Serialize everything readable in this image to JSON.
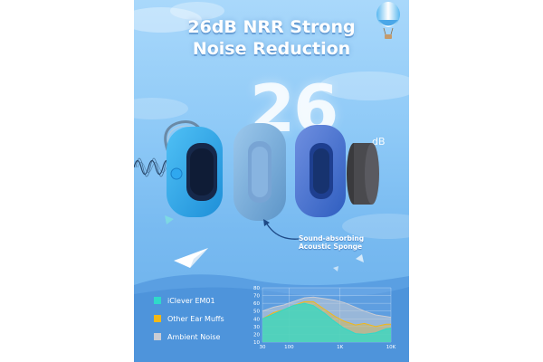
{
  "headline": {
    "line1": "26dB NRR Strong",
    "line2": "Noise Reduction"
  },
  "big_value": {
    "number": "26",
    "unit": "dB"
  },
  "callout": {
    "line1": "Sound-absorbing",
    "line2": "Acoustic Sponge"
  },
  "legend": [
    {
      "label": "iClever EM01",
      "color": "#2fd9c9"
    },
    {
      "label": "Other Ear Muffs",
      "color": "#f2b817"
    },
    {
      "label": "Ambient Noise",
      "color": "#c9ccd4"
    }
  ],
  "icons": [
    "hot-air-balloon-icon",
    "paper-airplane-icon",
    "sound-wave-icon",
    "curved-arrow-icon"
  ],
  "chart_data": {
    "type": "area",
    "xscale": "log",
    "xlim": [
      30,
      10000
    ],
    "x_ticks": [
      {
        "value": 30,
        "label": "30"
      },
      {
        "value": 100,
        "label": "100"
      },
      {
        "value": 1000,
        "label": "1K"
      },
      {
        "value": 10000,
        "label": "10K"
      }
    ],
    "ylim": [
      10,
      80
    ],
    "y_ticks": [
      10,
      20,
      30,
      40,
      50,
      60,
      70,
      80
    ],
    "grid": true,
    "x": [
      30,
      50,
      80,
      120,
      200,
      300,
      500,
      800,
      1200,
      2000,
      3000,
      5000,
      8000,
      10000
    ],
    "series": [
      {
        "name": "Ambient Noise",
        "color": "#c9ccd4",
        "values": [
          50,
          55,
          58,
          62,
          67,
          68,
          66,
          64,
          61,
          55,
          50,
          45,
          43,
          42
        ]
      },
      {
        "name": "Other Ear Muffs",
        "color": "#f2b817",
        "values": [
          40,
          48,
          52,
          57,
          62,
          62,
          52,
          43,
          37,
          32,
          34,
          30,
          33,
          33
        ]
      },
      {
        "name": "iClever EM01",
        "color": "#2fd9c9",
        "values": [
          40,
          46,
          52,
          57,
          60,
          57,
          47,
          36,
          28,
          21,
          20,
          22,
          27,
          28
        ]
      }
    ]
  }
}
